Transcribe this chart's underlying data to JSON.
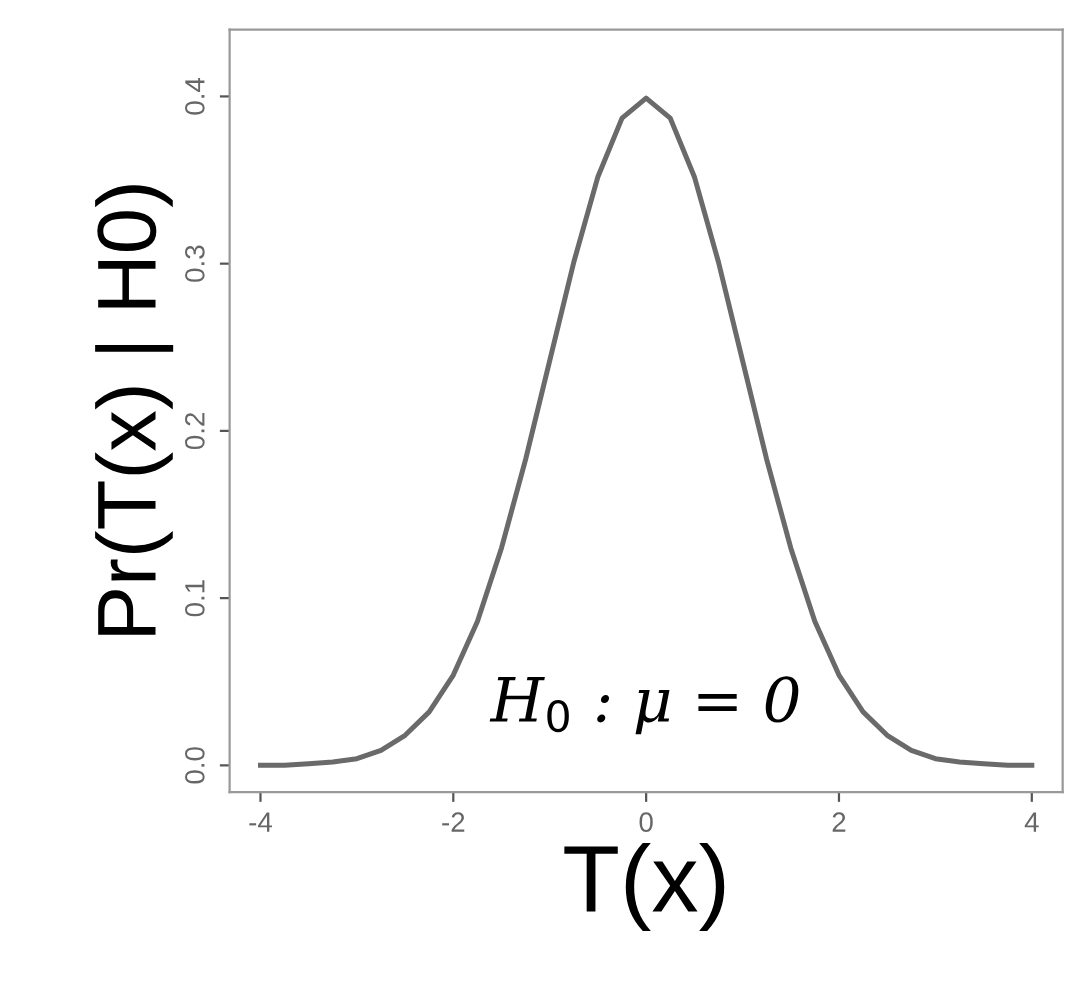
{
  "chart_data": {
    "type": "line",
    "xlabel": "T(x)",
    "ylabel": "Pr(T(x) | H0)",
    "x": [
      -4,
      -3.75,
      -3.5,
      -3.25,
      -3,
      -2.75,
      -2.5,
      -2.25,
      -2,
      -1.75,
      -1.5,
      -1.25,
      -1,
      -0.75,
      -0.5,
      -0.25,
      0,
      0.25,
      0.5,
      0.75,
      1,
      1.25,
      1.5,
      1.75,
      2,
      2.25,
      2.5,
      2.75,
      3,
      3.25,
      3.5,
      3.75,
      4
    ],
    "series": [
      {
        "color": "#6a6a6a",
        "values": [
          0.0,
          0.0,
          0.001,
          0.002,
          0.004,
          0.009,
          0.018,
          0.032,
          0.054,
          0.086,
          0.13,
          0.183,
          0.242,
          0.301,
          0.352,
          0.387,
          0.399,
          0.387,
          0.352,
          0.301,
          0.242,
          0.183,
          0.13,
          0.086,
          0.054,
          0.032,
          0.018,
          0.009,
          0.004,
          0.002,
          0.001,
          0.0,
          0.0
        ]
      }
    ],
    "xlim": [
      -4.32,
      4.32
    ],
    "ylim": [
      -0.016,
      0.44
    ],
    "xticks": [
      -4,
      -2,
      0,
      2,
      4
    ],
    "yticks": [
      {
        "value": 0,
        "label": "0.0"
      },
      0.1,
      0.2,
      0.3,
      0.4
    ],
    "annotations": [
      "H$_{0}$ : μ = 0"
    ],
    "grid": false,
    "legend": false,
    "line_style": "solid",
    "marker": "none"
  }
}
